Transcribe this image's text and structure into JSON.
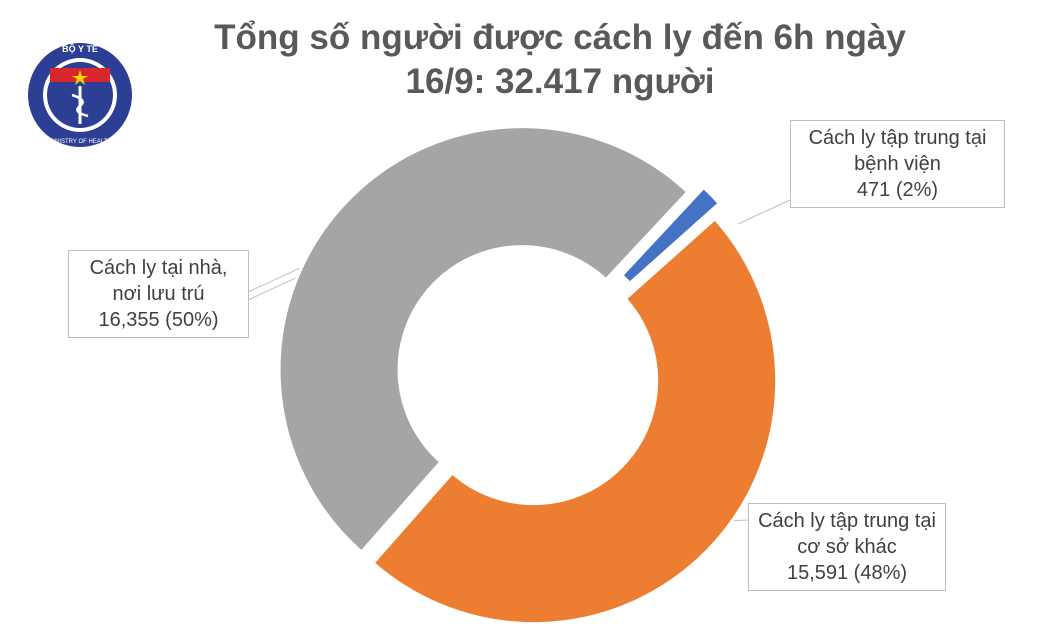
{
  "logo": {
    "top": "BỘ Y TẾ",
    "bottom": "MINISTRY OF HEALTH"
  },
  "chart_data": {
    "type": "donut",
    "title": [
      "Tổng số người được cách ly đến 6h ngày",
      "16/9: 32.417 người"
    ],
    "categories": [
      "Cách ly tập trung tại bệnh viện",
      "Cách ly tập trung tại cơ sở khác",
      "Cách ly tại nhà, nơi lưu trú"
    ],
    "values": [
      471,
      15591,
      16355
    ],
    "value_labels": [
      "471 (2%)",
      "15,591 (48%)",
      "16,355 (50%)"
    ],
    "colors": [
      "#4472c4",
      "#ed7d31",
      "#a5a5a5"
    ]
  }
}
